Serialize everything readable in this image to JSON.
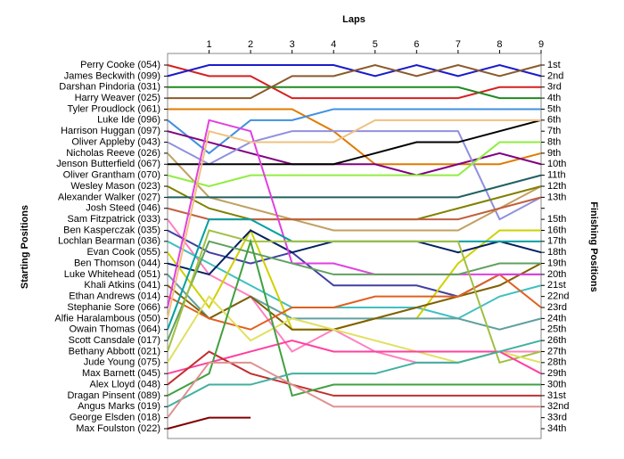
{
  "chart_data": {
    "type": "lap",
    "title": "Laps",
    "y_label": "Starting Positions",
    "y2_label": "Finishing Positions",
    "x": [
      0,
      1,
      2,
      3,
      4,
      5,
      6,
      7,
      8,
      9
    ],
    "xlim": [
      0,
      9
    ],
    "xticks": [
      1,
      2,
      3,
      4,
      5,
      6,
      7,
      8,
      9
    ],
    "ylim": [
      1,
      34
    ],
    "position_labels": [
      "1st",
      "2nd",
      "3rd",
      "4th",
      "5th",
      "6th",
      "7th",
      "8th",
      "9th",
      "10th",
      "11th",
      "12th",
      "13th",
      null,
      "15th",
      "16th",
      "17th",
      "18th",
      "19th",
      "20th",
      "21st",
      "22nd",
      "23rd",
      "24th",
      "25th",
      "26th",
      "27th",
      "28th",
      "29th",
      "30th",
      "31st",
      "32nd",
      "33rd",
      "34th"
    ],
    "series": [
      {
        "name": "Perry Cooke (054)",
        "color": "#d62020",
        "values": [
          1,
          2,
          2,
          4,
          4,
          4,
          4,
          4,
          3,
          3
        ]
      },
      {
        "name": "James Beckwith (099)",
        "color": "#1a1acc",
        "values": [
          2,
          1,
          1,
          1,
          1,
          2,
          1,
          2,
          1,
          2
        ]
      },
      {
        "name": "Darshan Pindoria (031)",
        "color": "#208a20",
        "values": [
          3,
          3,
          3,
          3,
          3,
          3,
          3,
          3,
          4,
          4
        ]
      },
      {
        "name": "Harry Weaver (025)",
        "color": "#8b5a2b",
        "values": [
          4,
          4,
          4,
          2,
          2,
          1,
          2,
          1,
          2,
          1
        ]
      },
      {
        "name": "Tyler Proudlock (061)",
        "color": "#e07b00",
        "values": [
          5,
          5,
          5,
          5,
          7,
          10,
          10,
          10,
          10,
          9
        ]
      },
      {
        "name": "Luke Ide (096)",
        "color": "#4090e0",
        "values": [
          6,
          9,
          6,
          6,
          5,
          5,
          5,
          5,
          5,
          5
        ]
      },
      {
        "name": "Harrison Huggan (097)",
        "color": "#800080",
        "values": [
          7,
          8,
          9,
          10,
          10,
          10,
          11,
          10,
          9,
          10
        ]
      },
      {
        "name": "Oliver Appleby (043)",
        "color": "#9090e0",
        "values": [
          8,
          10,
          8,
          7,
          7,
          7,
          7,
          7,
          15,
          13
        ]
      },
      {
        "name": "Nicholas Reeve (026)",
        "color": "#c0a060",
        "values": [
          9,
          13,
          14,
          15,
          16,
          16,
          16,
          16,
          14,
          12
        ]
      },
      {
        "name": "Jenson Butterfield (067)",
        "color": "#000000",
        "values": [
          10,
          10,
          10,
          10,
          10,
          9,
          8,
          8,
          7,
          6
        ]
      },
      {
        "name": "Oliver Grantham (070)",
        "color": "#90ee40",
        "values": [
          11,
          12,
          11,
          11,
          11,
          11,
          11,
          11,
          8,
          8
        ]
      },
      {
        "name": "Wesley Mason (023)",
        "color": "#808000",
        "values": [
          12,
          14,
          15,
          15,
          15,
          15,
          15,
          14,
          13,
          12
        ]
      },
      {
        "name": "Alexander Walker (027)",
        "color": "#206060",
        "values": [
          13,
          13,
          13,
          13,
          13,
          13,
          13,
          13,
          12,
          11
        ]
      },
      {
        "name": "Josh Steed (046)",
        "color": "#c06040",
        "values": [
          14,
          15,
          15,
          15,
          15,
          15,
          15,
          15,
          14,
          13
        ]
      },
      {
        "name": "Sam Fitzpatrick (033)",
        "color": "#ff80c0",
        "values": [
          15,
          20,
          22,
          27,
          25,
          27,
          28,
          28,
          27,
          27
        ]
      },
      {
        "name": "Ben Kasperczak (035)",
        "color": "#4040a0",
        "values": [
          16,
          18,
          19,
          18,
          21,
          21,
          21,
          22,
          20,
          20
        ]
      },
      {
        "name": "Lochlan Bearman (036)",
        "color": "#40c0c0",
        "values": [
          17,
          19,
          21,
          23,
          23,
          23,
          23,
          24,
          22,
          21
        ]
      },
      {
        "name": "Evan Cook (055)",
        "color": "#d0d000",
        "values": [
          18,
          23,
          16,
          25,
          25,
          24,
          24,
          19,
          16,
          16
        ]
      },
      {
        "name": "Ben Thomson (044)",
        "color": "#002060",
        "values": [
          19,
          20,
          16,
          18,
          17,
          17,
          17,
          18,
          17,
          18
        ]
      },
      {
        "name": "Luke Whitehead (051)",
        "color": "#60a0a0",
        "values": [
          20,
          24,
          22,
          24,
          24,
          24,
          24,
          24,
          25,
          24
        ]
      },
      {
        "name": "Khali Atkins (041)",
        "color": "#806000",
        "values": [
          21,
          24,
          22,
          25,
          25,
          24,
          23,
          22,
          21,
          19
        ]
      },
      {
        "name": "Ethan Andrews (014)",
        "color": "#e06020",
        "values": [
          22,
          24,
          25,
          23,
          23,
          22,
          22,
          22,
          20,
          23
        ]
      },
      {
        "name": "Stephanie Sore (066)",
        "color": "#e040e0",
        "values": [
          23,
          6,
          7,
          19,
          19,
          20,
          20,
          20,
          20,
          20
        ]
      },
      {
        "name": "Alfie Haralambous (050)",
        "color": "#f0c080",
        "values": [
          24,
          7,
          8,
          8,
          8,
          6,
          6,
          6,
          6,
          6
        ]
      },
      {
        "name": "Owain Thomas (064)",
        "color": "#00a0a0",
        "values": [
          25,
          15,
          15,
          17,
          17,
          17,
          17,
          17,
          17,
          17
        ]
      },
      {
        "name": "Scott Cansdale (017)",
        "color": "#60a060",
        "values": [
          26,
          17,
          18,
          19,
          20,
          20,
          20,
          20,
          19,
          19
        ]
      },
      {
        "name": "Bethany Abbott (021)",
        "color": "#a0c040",
        "values": [
          27,
          16,
          17,
          17,
          17,
          17,
          17,
          17,
          28,
          27
        ]
      },
      {
        "name": "Jude Young (075)",
        "color": "#e0e060",
        "values": [
          28,
          22,
          26,
          24,
          25,
          26,
          27,
          28,
          27,
          28
        ]
      },
      {
        "name": "Max Barnett (045)",
        "color": "#ff40a0",
        "values": [
          29,
          28,
          27,
          26,
          27,
          27,
          27,
          27,
          27,
          29
        ]
      },
      {
        "name": "Alex Lloyd (048)",
        "color": "#c03030",
        "values": [
          30,
          27,
          29,
          30,
          31,
          31,
          31,
          31,
          31,
          31
        ]
      },
      {
        "name": "Dragan Pinsent (089)",
        "color": "#40a040",
        "values": [
          31,
          29,
          17,
          31,
          30,
          30,
          30,
          30,
          30,
          30
        ]
      },
      {
        "name": "Angus Marks (019)",
        "color": "#40b0a0",
        "values": [
          32,
          30,
          30,
          29,
          29,
          29,
          28,
          28,
          27,
          26
        ]
      },
      {
        "name": "George Elsden (018)",
        "color": "#e09090",
        "values": [
          33,
          28,
          28,
          30,
          32,
          32,
          32,
          32,
          32,
          32
        ]
      },
      {
        "name": "Max Foulston (022)",
        "color": "#800000",
        "values": [
          34,
          33,
          33,
          null,
          null,
          null,
          null,
          null,
          null,
          null
        ]
      }
    ]
  }
}
